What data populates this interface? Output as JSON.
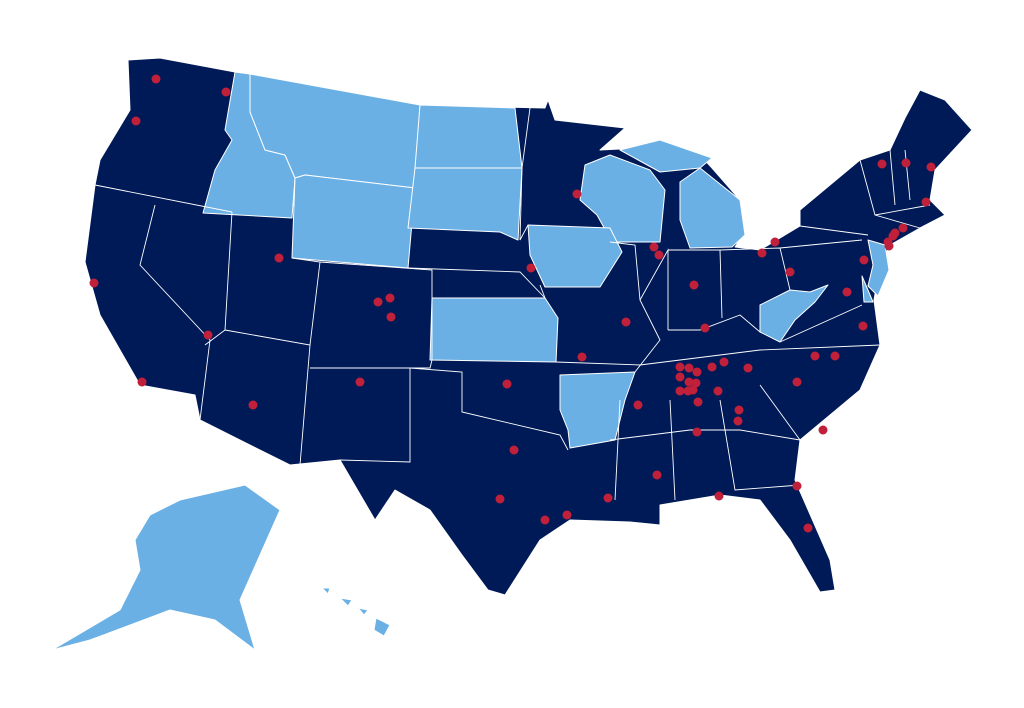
{
  "map": {
    "colors": {
      "background": "#ffffff",
      "state_primary": "#001a57",
      "state_secondary": "#6ab0e4",
      "border": "#ffffff",
      "marker": "#c0203a"
    },
    "secondary_state_icons": [
      "idaho",
      "montana",
      "wyoming",
      "north-dakota",
      "south-dakota",
      "wisconsin",
      "michigan",
      "iowa",
      "kansas",
      "arkansas",
      "west-virginia",
      "new-jersey",
      "delaware",
      "alaska",
      "hawaii"
    ]
  }
}
